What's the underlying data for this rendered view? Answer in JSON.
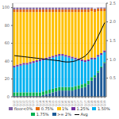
{
  "chart_data": {
    "type": "bar",
    "stacked": true,
    "grid": true,
    "legend": "bottom",
    "categories": [
      "1Q12",
      "2Q12",
      "3Q12",
      "4Q12",
      "1Q13",
      "2Q13",
      "3Q13",
      "4Q13",
      "1Q14",
      "2Q14",
      "3Q14",
      "4Q14",
      "1Q15",
      "2Q15",
      "3Q15",
      "1Q16",
      "2Q16",
      "3Q16",
      "4Q16",
      "1Q17",
      "2Q17",
      "3Q17",
      "4Q17",
      "1Q18",
      "2Q18",
      "3Q18",
      "4Q18",
      "1Q19",
      "2Q19"
    ],
    "series": [
      {
        "name": "floor<0%",
        "color": "#8064a2",
        "values": [
          2,
          2,
          2,
          2,
          2,
          2,
          2,
          2,
          2,
          2,
          2,
          2,
          2,
          2,
          2,
          2,
          2,
          2,
          2,
          2,
          2,
          2,
          2,
          2,
          1,
          1,
          1,
          1,
          1
        ]
      },
      {
        "name": "0.75%",
        "color": "#e46c0a",
        "values": [
          3,
          3,
          3,
          3,
          3,
          3,
          3,
          3,
          3,
          3,
          3,
          3,
          3,
          3,
          3,
          3,
          3,
          3,
          3,
          3,
          3,
          3,
          3,
          3,
          3,
          3,
          3,
          3,
          3
        ]
      },
      {
        "name": "1%",
        "color": "#ffc000",
        "values": [
          60,
          59,
          58,
          57,
          57,
          56,
          55,
          54,
          53,
          52,
          51,
          50,
          49,
          48,
          47,
          47,
          48,
          49,
          50,
          51,
          52,
          53,
          54,
          53,
          52,
          51,
          49,
          47,
          44
        ]
      },
      {
        "name": "1.25%",
        "color": "#7030a0",
        "values": [
          2,
          2,
          2,
          2,
          2,
          2,
          2,
          2,
          2,
          2,
          2,
          2,
          2,
          2,
          2,
          2,
          2,
          2,
          2,
          2,
          2,
          2,
          2,
          2,
          2,
          2,
          2,
          2,
          2
        ]
      },
      {
        "name": "1.50%",
        "color": "#00b0f0",
        "values": [
          28,
          29,
          30,
          31,
          31,
          32,
          33,
          34,
          35,
          35,
          35,
          35,
          35,
          35,
          35,
          35,
          34,
          33,
          32,
          30,
          28,
          26,
          24,
          22,
          20,
          18,
          16,
          13,
          11
        ]
      },
      {
        "name": "1.75%",
        "color": "#00b050",
        "values": [
          4,
          4,
          4,
          4,
          4,
          4,
          4,
          4,
          4,
          4,
          4,
          4,
          4,
          4,
          4,
          4,
          4,
          4,
          4,
          4,
          4,
          4,
          4,
          4,
          4,
          2,
          2,
          1,
          1
        ]
      },
      {
        "name": ">= 2%",
        "color": "#1f5c99",
        "values": [
          1,
          1,
          1,
          1,
          1,
          1,
          1,
          1,
          1,
          2,
          3,
          4,
          5,
          6,
          7,
          7,
          7,
          7,
          7,
          8,
          9,
          10,
          11,
          14,
          18,
          22,
          27,
          33,
          38
        ]
      },
      {
        "name": "Avg",
        "type": "line",
        "axis": "y2",
        "color": "#000000",
        "values": [
          1.1,
          1.09,
          1.08,
          1.07,
          1.06,
          1.05,
          1.04,
          1.03,
          1.02,
          1.01,
          1.0,
          0.99,
          0.98,
          0.97,
          0.96,
          0.94,
          0.93,
          0.93,
          0.94,
          0.96,
          1.0,
          1.04,
          1.09,
          1.18,
          1.3,
          1.45,
          1.62,
          1.8,
          1.98
        ]
      }
    ],
    "ylim": [
      0,
      105
    ],
    "yticks": [
      0,
      20,
      40,
      60,
      80,
      100
    ],
    "y2lim": [
      0,
      2.5
    ],
    "y2ticks": [
      0.5,
      {
        "value": 1,
        "label": "1.0"
      },
      1.5,
      {
        "value": 2,
        "label": "2.0"
      },
      2.5
    ]
  }
}
